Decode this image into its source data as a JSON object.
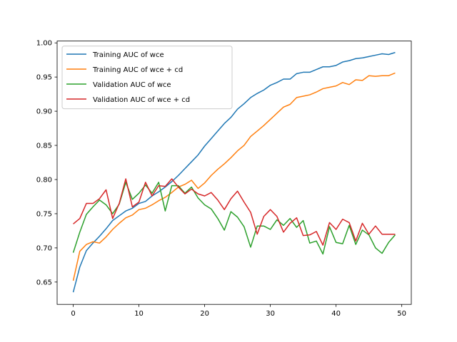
{
  "chart_data": {
    "type": "line",
    "title": "",
    "xlabel": "",
    "ylabel": "",
    "xlim": [
      -2.45,
      51.45
    ],
    "ylim": [
      0.6173,
      1.0027
    ],
    "xticks": [
      0,
      10,
      20,
      30,
      40,
      50
    ],
    "yticks": [
      0.65,
      0.7,
      0.75,
      0.8,
      0.85,
      0.9,
      0.95,
      1.0
    ],
    "xtick_labels": [
      "0",
      "10",
      "20",
      "30",
      "40",
      "50"
    ],
    "ytick_labels": [
      "0.65",
      "0.70",
      "0.75",
      "0.80",
      "0.85",
      "0.90",
      "0.95",
      "1.00"
    ],
    "grid": false,
    "legend_position": "upper-left",
    "x": [
      0,
      1,
      2,
      3,
      4,
      5,
      6,
      7,
      8,
      9,
      10,
      11,
      12,
      13,
      14,
      15,
      16,
      17,
      18,
      19,
      20,
      21,
      22,
      23,
      24,
      25,
      26,
      27,
      28,
      29,
      30,
      31,
      32,
      33,
      34,
      35,
      36,
      37,
      38,
      39,
      40,
      41,
      42,
      43,
      44,
      45,
      46,
      47,
      48,
      49
    ],
    "series": [
      {
        "name": "Training AUC of wce",
        "color": "#1f77b4",
        "values": [
          0.635,
          0.672,
          0.696,
          0.707,
          0.717,
          0.728,
          0.74,
          0.747,
          0.754,
          0.758,
          0.765,
          0.768,
          0.776,
          0.782,
          0.789,
          0.797,
          0.806,
          0.816,
          0.826,
          0.836,
          0.849,
          0.86,
          0.871,
          0.882,
          0.891,
          0.903,
          0.911,
          0.92,
          0.926,
          0.931,
          0.938,
          0.942,
          0.947,
          0.947,
          0.955,
          0.957,
          0.957,
          0.961,
          0.965,
          0.965,
          0.967,
          0.972,
          0.974,
          0.977,
          0.978,
          0.98,
          0.982,
          0.984,
          0.983,
          0.986
        ]
      },
      {
        "name": "Training AUC of wce + cd",
        "color": "#ff7f0e",
        "values": [
          0.652,
          0.695,
          0.705,
          0.709,
          0.707,
          0.716,
          0.727,
          0.736,
          0.744,
          0.748,
          0.756,
          0.758,
          0.763,
          0.769,
          0.774,
          0.781,
          0.789,
          0.793,
          0.799,
          0.787,
          0.795,
          0.806,
          0.815,
          0.823,
          0.832,
          0.842,
          0.85,
          0.863,
          0.871,
          0.879,
          0.888,
          0.897,
          0.906,
          0.91,
          0.92,
          0.922,
          0.924,
          0.928,
          0.933,
          0.935,
          0.937,
          0.942,
          0.939,
          0.946,
          0.945,
          0.952,
          0.951,
          0.952,
          0.952,
          0.956
        ]
      },
      {
        "name": "Validation AUC of wce",
        "color": "#2ca02c",
        "values": [
          0.693,
          0.723,
          0.749,
          0.76,
          0.77,
          0.763,
          0.75,
          0.764,
          0.796,
          0.771,
          0.78,
          0.792,
          0.78,
          0.796,
          0.754,
          0.791,
          0.791,
          0.78,
          0.789,
          0.773,
          0.763,
          0.757,
          0.743,
          0.726,
          0.753,
          0.745,
          0.731,
          0.701,
          0.732,
          0.732,
          0.727,
          0.741,
          0.733,
          0.743,
          0.73,
          0.74,
          0.707,
          0.71,
          0.691,
          0.731,
          0.708,
          0.706,
          0.733,
          0.705,
          0.726,
          0.719,
          0.7,
          0.692,
          0.708,
          0.719
        ]
      },
      {
        "name": "Validation AUC of wce + cd",
        "color": "#d62728",
        "values": [
          0.735,
          0.743,
          0.765,
          0.765,
          0.772,
          0.785,
          0.743,
          0.765,
          0.801,
          0.76,
          0.767,
          0.796,
          0.776,
          0.791,
          0.79,
          0.801,
          0.789,
          0.779,
          0.786,
          0.779,
          0.776,
          0.781,
          0.77,
          0.756,
          0.772,
          0.783,
          0.767,
          0.752,
          0.72,
          0.746,
          0.756,
          0.746,
          0.723,
          0.736,
          0.744,
          0.718,
          0.719,
          0.724,
          0.704,
          0.737,
          0.727,
          0.742,
          0.737,
          0.71,
          0.736,
          0.72,
          0.732,
          0.72,
          0.72,
          0.72
        ]
      }
    ]
  }
}
